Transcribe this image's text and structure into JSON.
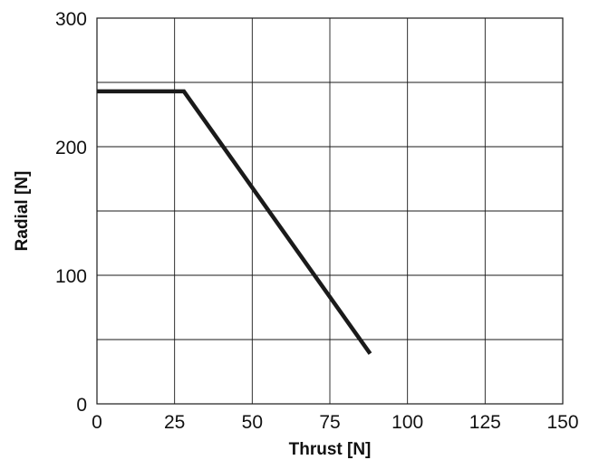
{
  "chart_data": {
    "type": "line",
    "title": "",
    "xlabel": "Thrust [N]",
    "ylabel": "Radial [N]",
    "xlim": [
      0,
      150
    ],
    "ylim": [
      0,
      300
    ],
    "xticks": [
      "0",
      "25",
      "50",
      "75",
      "100",
      "125",
      "150"
    ],
    "yticks": [
      "0",
      "100",
      "200",
      "300"
    ],
    "grid": true,
    "series": [
      {
        "x": [
          0,
          28,
          88
        ],
        "y": [
          243,
          243,
          39
        ],
        "color": "#1a1a1a"
      }
    ]
  }
}
